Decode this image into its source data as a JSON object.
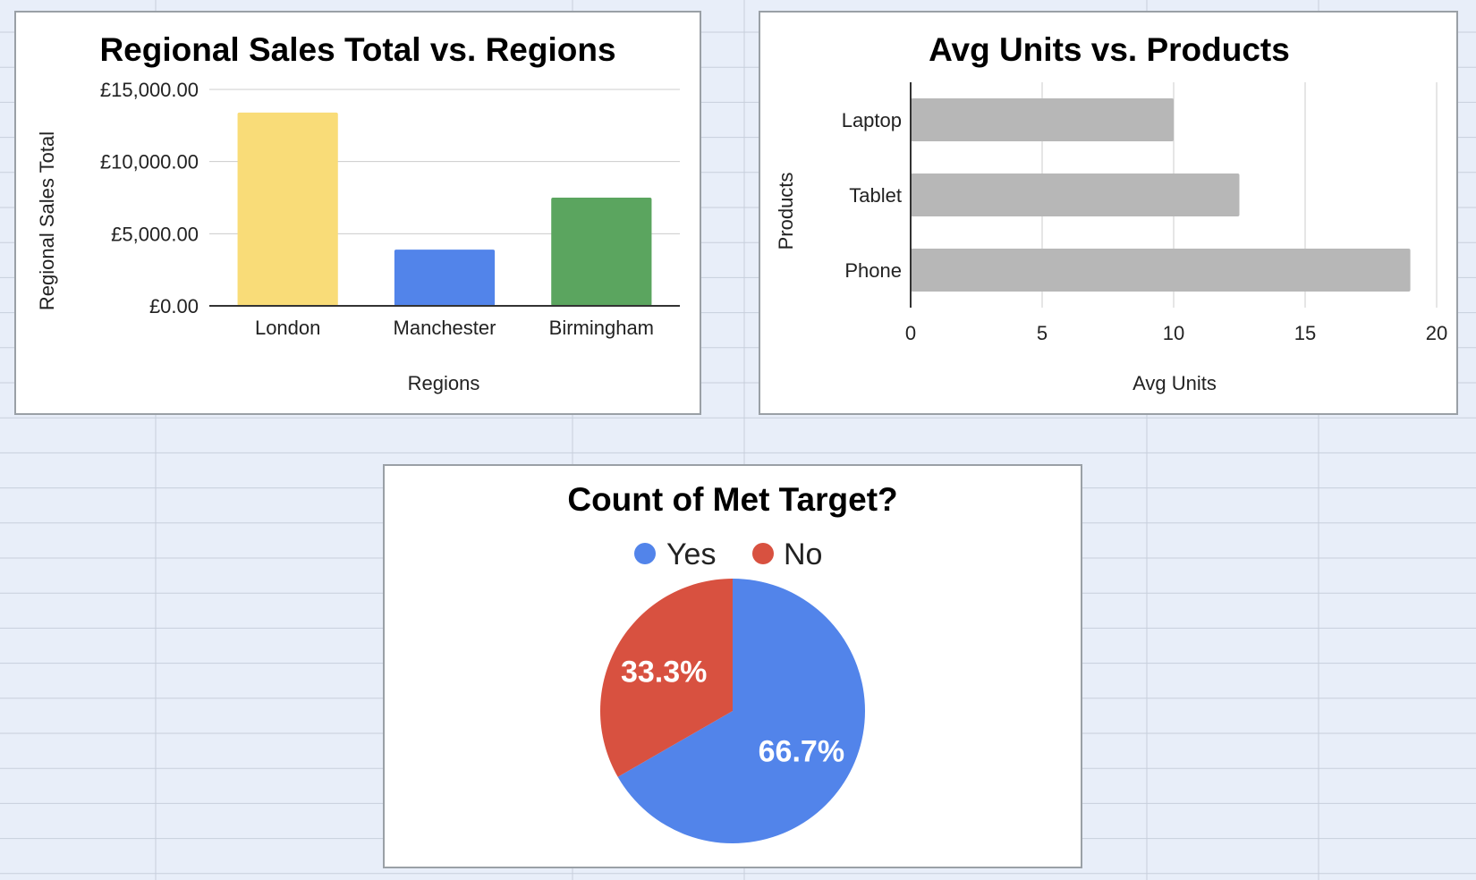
{
  "chart_data": [
    {
      "type": "bar",
      "title": "Regional Sales Total vs. Regions",
      "xlabel": "Regions",
      "ylabel": "Regional Sales Total",
      "categories": [
        "London",
        "Manchester",
        "Birmingham"
      ],
      "values": [
        13400,
        3900,
        7500
      ],
      "colors": [
        "#f9dc78",
        "#5284ea",
        "#5ba55f"
      ],
      "ylim": [
        0,
        15000
      ],
      "yticks": [
        0,
        5000,
        10000,
        15000
      ],
      "ytick_labels": [
        "£0.00",
        "£5,000.00",
        "£10,000.00",
        "£15,000.00"
      ],
      "grid": true,
      "legend": "none"
    },
    {
      "type": "bar",
      "orientation": "horizontal",
      "title": "Avg Units vs. Products",
      "xlabel": "Avg Units",
      "ylabel": "Products",
      "categories": [
        "Laptop",
        "Tablet",
        "Phone"
      ],
      "values": [
        10,
        12.5,
        19
      ],
      "color": "#b7b7b7",
      "xlim": [
        0,
        20
      ],
      "xticks": [
        0,
        5,
        10,
        15,
        20
      ],
      "xtick_labels": [
        "0",
        "5",
        "10",
        "15",
        "20"
      ],
      "grid": true,
      "legend": "none"
    },
    {
      "type": "pie",
      "title": "Count of Met Target?",
      "categories": [
        "Yes",
        "No"
      ],
      "values": [
        66.7,
        33.3
      ],
      "labels": [
        "66.7%",
        "33.3%"
      ],
      "colors": [
        "#5284ea",
        "#d85140"
      ],
      "legend": "top"
    }
  ]
}
